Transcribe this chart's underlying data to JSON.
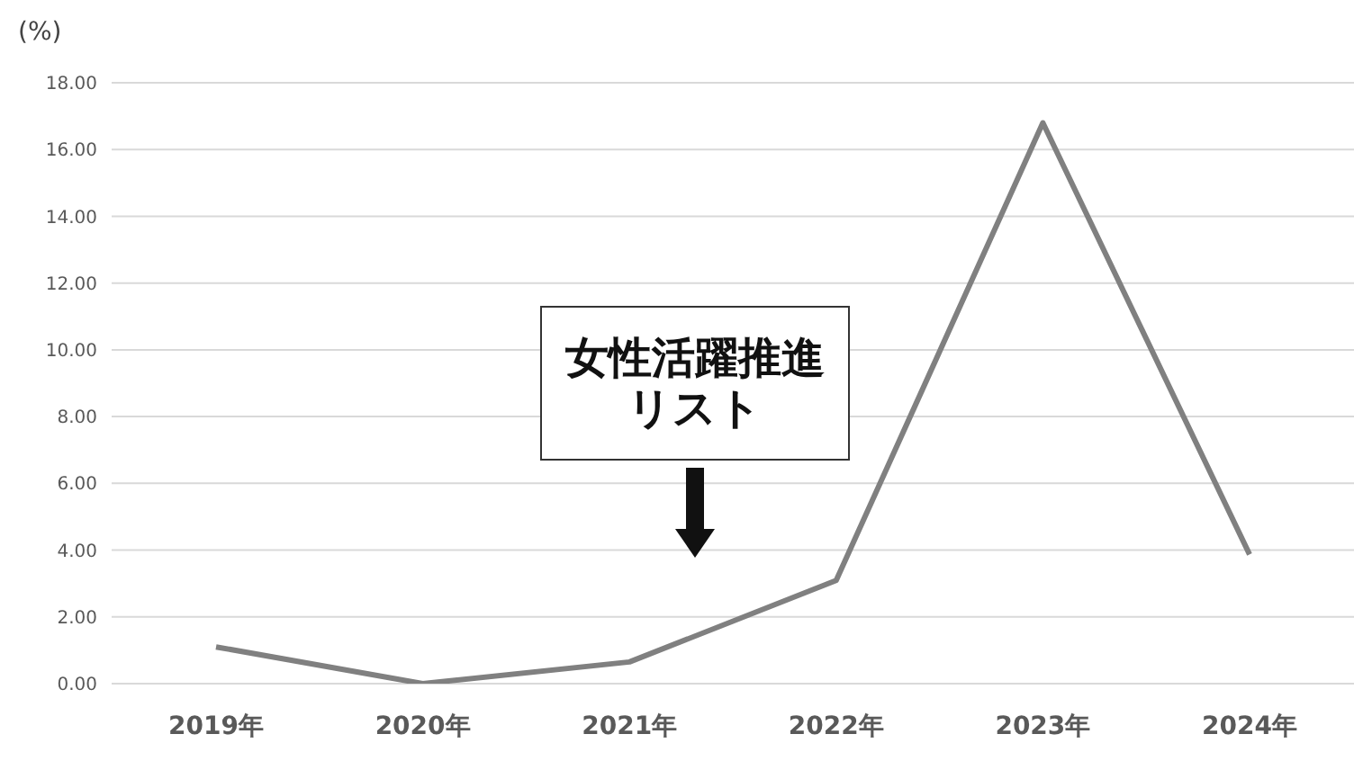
{
  "chart_data": {
    "type": "line",
    "ylabel": "(%)",
    "categories": [
      "2019年",
      "2020年",
      "2021年",
      "2022年",
      "2023年",
      "2024年"
    ],
    "series": [
      {
        "color": "#808080",
        "values": [
          1.1,
          0.0,
          0.65,
          3.09,
          16.8,
          3.87
        ]
      }
    ],
    "ylim": [
      0,
      18
    ],
    "yticks": [
      {
        "value": 0,
        "label": "0.00"
      },
      {
        "value": 2,
        "label": "2.00"
      },
      {
        "value": 4,
        "label": "4.00"
      },
      {
        "value": 6,
        "label": "6.00"
      },
      {
        "value": 8,
        "label": "8.00"
      },
      {
        "value": 10,
        "label": "10.00"
      },
      {
        "value": 12,
        "label": "12.00"
      },
      {
        "value": 14,
        "label": "14.00"
      },
      {
        "value": 16,
        "label": "16.00"
      },
      {
        "value": 18,
        "label": "18.00"
      }
    ],
    "grid": "y",
    "legend": false,
    "marker": "none",
    "line_style": "solid",
    "annotations": [
      "女性活躍推進リスト"
    ]
  }
}
